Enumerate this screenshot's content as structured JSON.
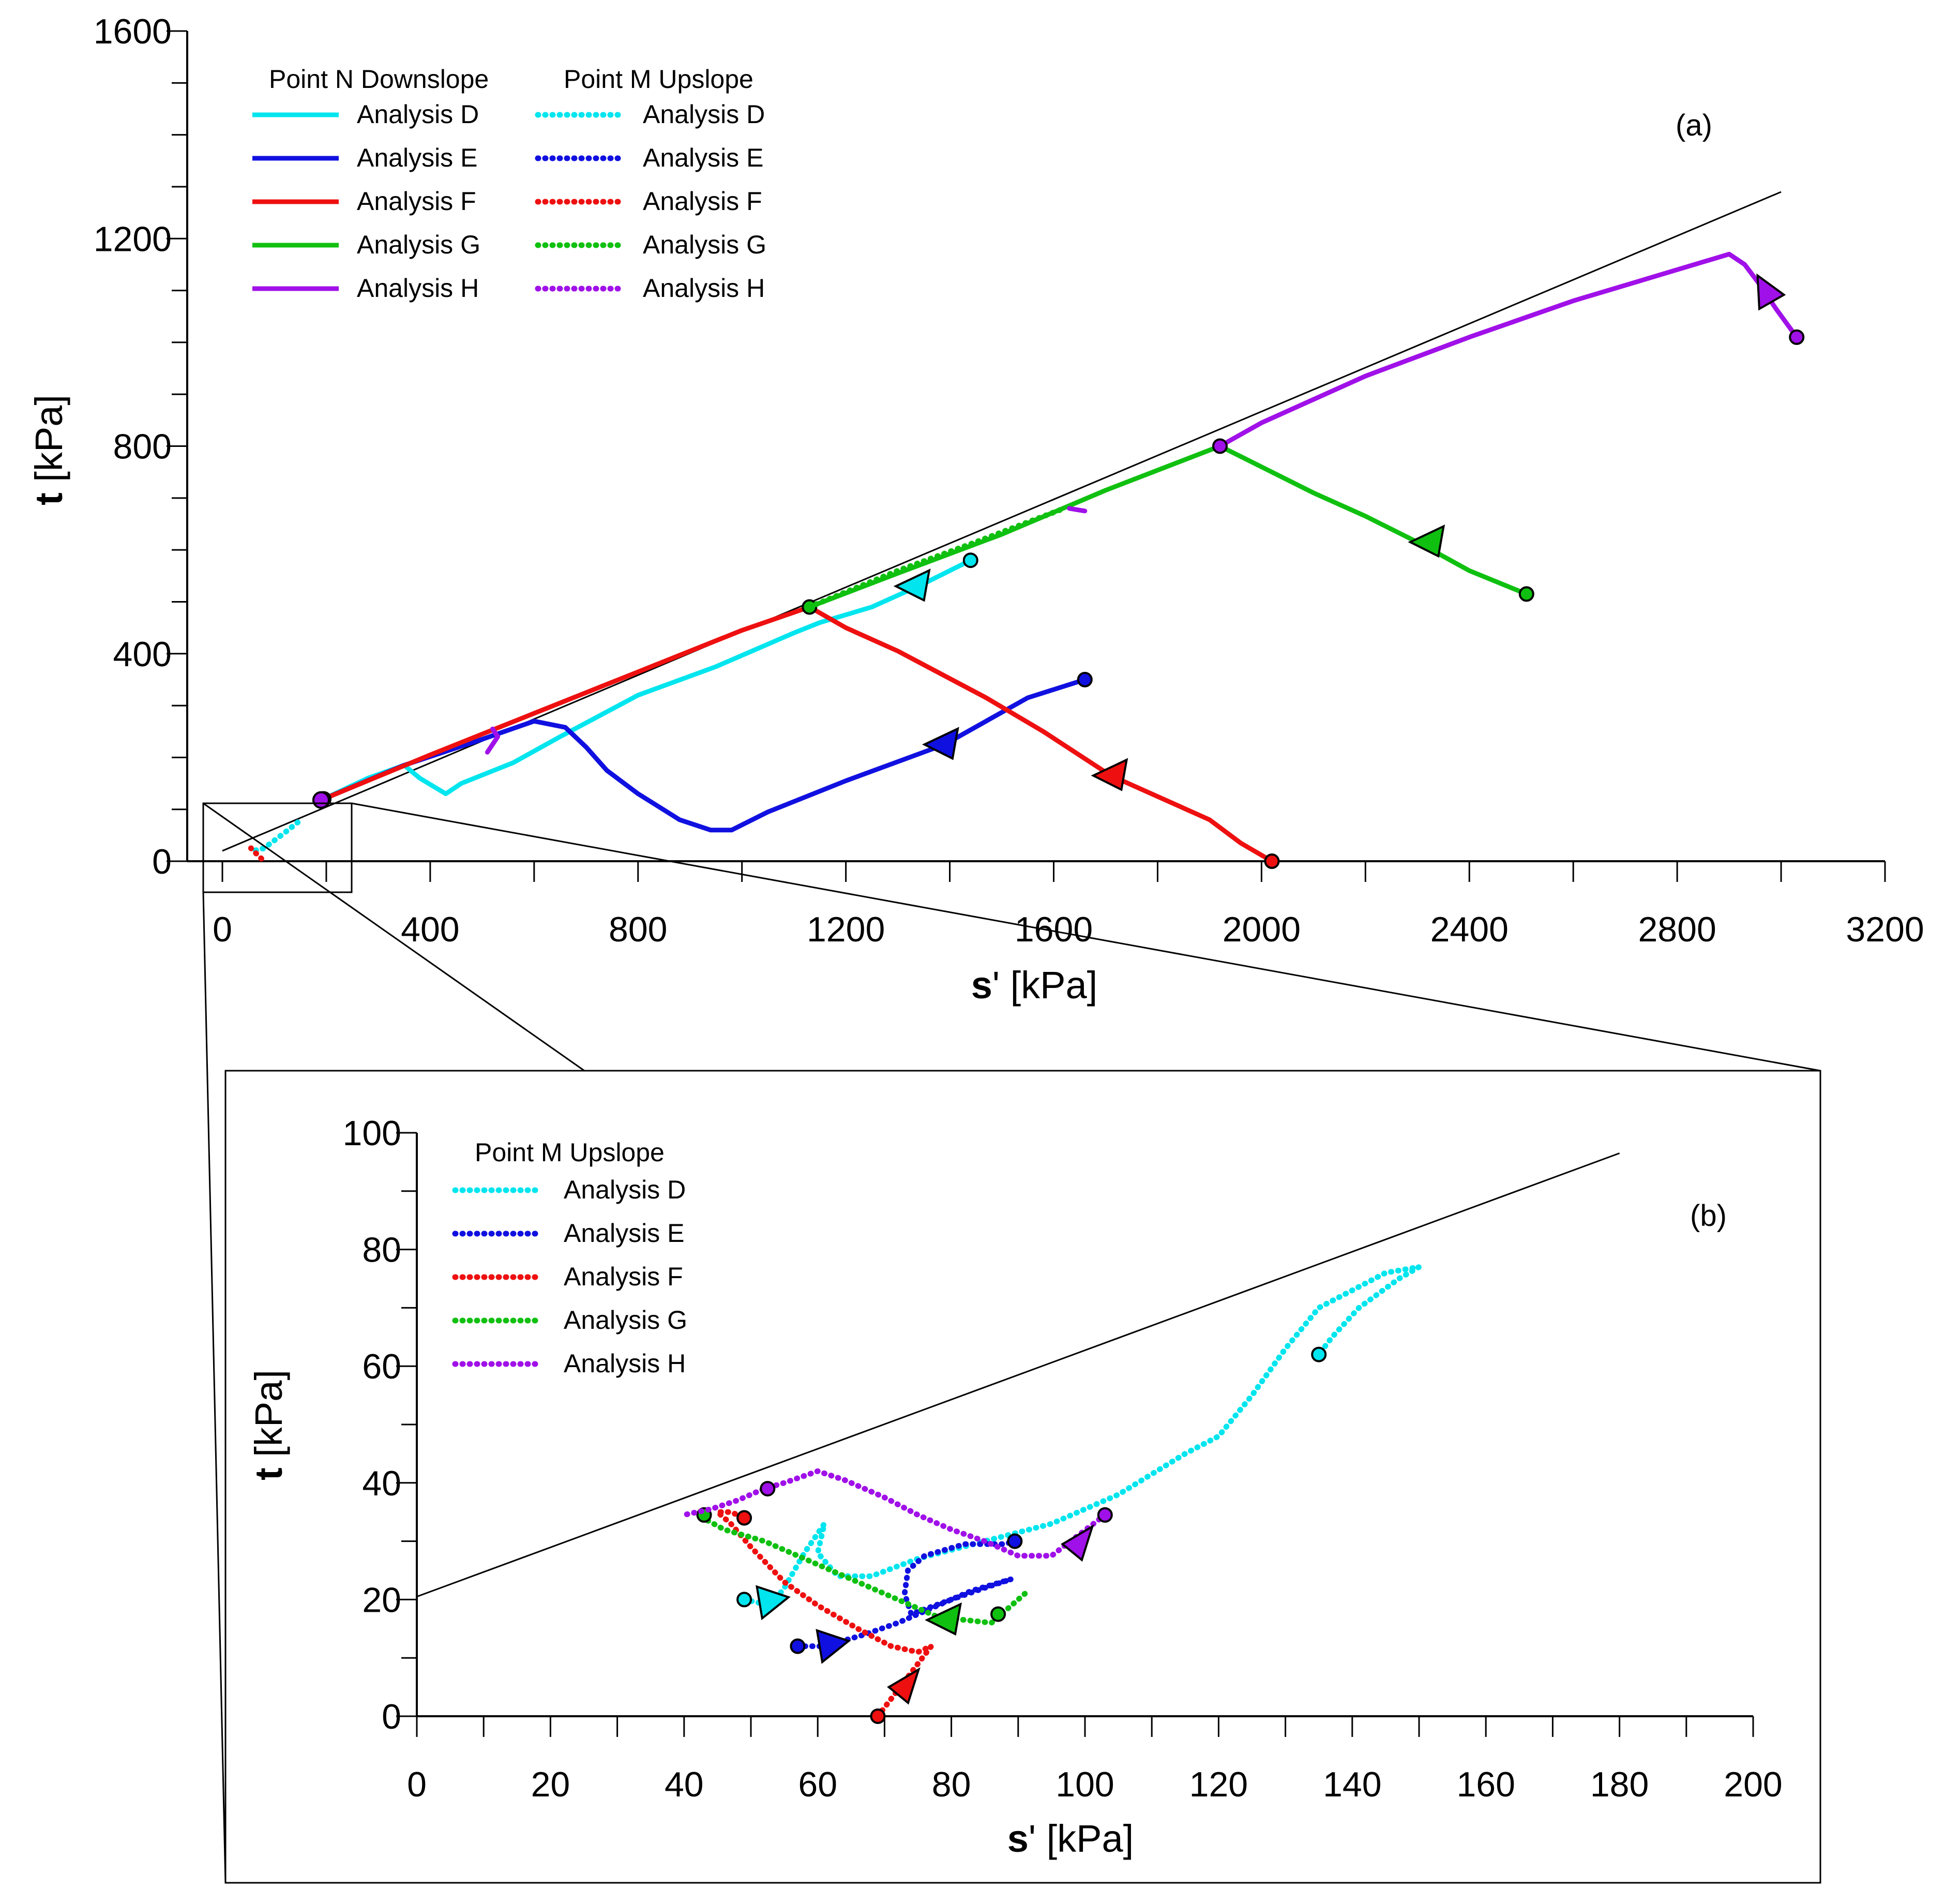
{
  "colors": {
    "D": "#00e5ee",
    "E": "#1010e0",
    "F": "#ee1010",
    "G": "#10c010",
    "H": "#a010e8",
    "line": "#000000"
  },
  "chart_data": [
    {
      "id": "a",
      "type": "line",
      "panel_label": "(a)",
      "xlabel_bold": "s",
      "xlabel_rest": "' [kPa]",
      "ylabel_bold": "t",
      "ylabel_rest": " [kPa]",
      "xlim": [
        0,
        3200
      ],
      "ylim": [
        0,
        1600
      ],
      "xticks": [
        0,
        400,
        800,
        1200,
        1600,
        2000,
        2400,
        2800,
        3200
      ],
      "yticks": [
        0,
        400,
        800,
        1200,
        1600
      ],
      "xtick_labels": [
        "0",
        "400",
        "800",
        "1200",
        "1600",
        "2000",
        "2400",
        "2800",
        "3200"
      ],
      "ytick_labels": [
        "0",
        "400",
        "800",
        "1200",
        "1600"
      ],
      "legend": {
        "heading_solid": "Point N Downslope",
        "heading_dotted": "Point M Upslope",
        "entries": [
          {
            "key": "D",
            "label": "Analysis D"
          },
          {
            "key": "E",
            "label": "Analysis E"
          },
          {
            "key": "F",
            "label": "Analysis F"
          },
          {
            "key": "G",
            "label": "Analysis G"
          },
          {
            "key": "H",
            "label": "Analysis H"
          }
        ]
      },
      "failure_line": [
        [
          0,
          20
        ],
        [
          3000,
          1290
        ]
      ],
      "series": [
        {
          "name": "Point N Downslope - Analysis D",
          "key": "D",
          "style": "solid",
          "points": [
            [
              1440,
              580
            ],
            [
              1350,
              535
            ],
            [
              1250,
              490
            ],
            [
              1150,
              460
            ],
            [
              1100,
              440
            ],
            [
              950,
              375
            ],
            [
              800,
              320
            ],
            [
              650,
              240
            ],
            [
              560,
              190
            ],
            [
              460,
              150
            ],
            [
              430,
              130
            ],
            [
              380,
              160
            ],
            [
              350,
              185
            ],
            [
              280,
              160
            ],
            [
              195,
              120
            ]
          ],
          "start": [
            1440,
            580
          ],
          "end": [
            195,
            120
          ],
          "arrow": {
            "at": [
              1330,
              530
            ],
            "dir": "left"
          }
        },
        {
          "name": "Point N Downslope - Analysis E",
          "key": "E",
          "style": "solid",
          "points": [
            [
              1660,
              350
            ],
            [
              1550,
              315
            ],
            [
              1390,
              225
            ],
            [
              1200,
              155
            ],
            [
              1050,
              95
            ],
            [
              980,
              60
            ],
            [
              940,
              60
            ],
            [
              880,
              80
            ],
            [
              800,
              130
            ],
            [
              740,
              175
            ],
            [
              700,
              220
            ],
            [
              660,
              258
            ],
            [
              600,
              270
            ],
            [
              500,
              235
            ],
            [
              350,
              185
            ],
            [
              195,
              120
            ]
          ],
          "start": [
            1660,
            350
          ],
          "end": [
            195,
            120
          ],
          "arrow": {
            "at": [
              1385,
              225
            ],
            "dir": "left"
          }
        },
        {
          "name": "Point N Downslope - Analysis F",
          "key": "F",
          "style": "solid",
          "points": [
            [
              2020,
              0
            ],
            [
              1960,
              35
            ],
            [
              1900,
              80
            ],
            [
              1710,
              165
            ],
            [
              1580,
              250
            ],
            [
              1470,
              315
            ],
            [
              1300,
              405
            ],
            [
              1200,
              450
            ],
            [
              1130,
              490
            ],
            [
              1000,
              445
            ],
            [
              800,
              365
            ],
            [
              600,
              285
            ],
            [
              400,
              205
            ],
            [
              195,
              120
            ]
          ],
          "start": [
            2020,
            0
          ],
          "end": [
            195,
            120
          ],
          "arrow": {
            "at": [
              1710,
              165
            ],
            "dir": "left"
          }
        },
        {
          "name": "Point N Downslope - Analysis G",
          "key": "G",
          "style": "solid",
          "points": [
            [
              2510,
              515
            ],
            [
              2400,
              560
            ],
            [
              2300,
              615
            ],
            [
              2200,
              665
            ],
            [
              2100,
              710
            ],
            [
              2000,
              760
            ],
            [
              1920,
              800
            ],
            [
              1700,
              715
            ],
            [
              1500,
              630
            ],
            [
              1300,
              555
            ],
            [
              1130,
              490
            ]
          ],
          "start": [
            2510,
            515
          ],
          "end": [
            1130,
            490
          ],
          "arrow": {
            "at": [
              2320,
              615
            ],
            "dir": "left"
          }
        },
        {
          "name": "Point N Downslope - Analysis H",
          "key": "H",
          "style": "solid",
          "points": [
            [
              3030,
              1010
            ],
            [
              2990,
              1065
            ],
            [
              2960,
              1110
            ],
            [
              2930,
              1150
            ],
            [
              2900,
              1170
            ],
            [
              2600,
              1080
            ],
            [
              2400,
              1010
            ],
            [
              2200,
              935
            ],
            [
              2000,
              845
            ],
            [
              1920,
              800
            ]
          ],
          "start": [
            3030,
            1010
          ],
          "end": [
            1920,
            800
          ],
          "arrow": {
            "at": [
              2975,
              1095
            ],
            "dir": "up"
          }
        },
        {
          "name": "Point N Downslope - Analysis H (segment)",
          "key": "H",
          "style": "solid",
          "points": [
            [
              1660,
              675
            ],
            [
              1630,
              680
            ]
          ],
          "start": null,
          "end": null,
          "arrow": null
        },
        {
          "name": "Point N Downslope - Analysis H (segment 2)",
          "key": "H",
          "style": "solid",
          "points": [
            [
              510,
              210
            ],
            [
              530,
              240
            ],
            [
              520,
              255
            ]
          ],
          "start": null,
          "end": null,
          "arrow": null
        },
        {
          "name": "Point M Upslope - Analysis D (panel a)",
          "key": "D",
          "style": "dotted",
          "points": [
            [
              145,
              75
            ],
            [
              120,
              55
            ],
            [
              100,
              40
            ],
            [
              80,
              25
            ],
            [
              60,
              20
            ]
          ],
          "start": null,
          "end": null,
          "arrow": null
        },
        {
          "name": "Point M Upslope - Analysis G (panel a)",
          "key": "G",
          "style": "dotted",
          "points": [
            [
              1130,
              490
            ],
            [
              1300,
              560
            ],
            [
              1450,
              615
            ],
            [
              1620,
              680
            ]
          ],
          "start": null,
          "end": null,
          "arrow": null
        },
        {
          "name": "Point M Upslope - Analysis F (panel a)",
          "key": "F",
          "style": "dotted",
          "points": [
            [
              75,
              5
            ],
            [
              65,
              15
            ],
            [
              55,
              25
            ]
          ],
          "start": null,
          "end": null,
          "arrow": null
        }
      ],
      "start_marker_n": {
        "at": [
          190,
          118
        ]
      }
    },
    {
      "id": "b",
      "type": "line",
      "panel_label": "(b)",
      "xlabel_bold": "s",
      "xlabel_rest": "' [kPa]",
      "ylabel_bold": "t",
      "ylabel_rest": " [kPa]",
      "xlim": [
        0,
        200
      ],
      "ylim": [
        0,
        100
      ],
      "xticks": [
        0,
        20,
        40,
        60,
        80,
        100,
        120,
        140,
        160,
        180,
        200
      ],
      "yticks": [
        0,
        20,
        40,
        60,
        80,
        100
      ],
      "xtick_labels": [
        "0",
        "20",
        "40",
        "60",
        "80",
        "100",
        "120",
        "140",
        "160",
        "180",
        "200"
      ],
      "ytick_labels": [
        "0",
        "20",
        "40",
        "60",
        "80",
        "100"
      ],
      "legend": {
        "heading_dotted": "Point M Upslope",
        "entries": [
          {
            "key": "D",
            "label": "Analysis D"
          },
          {
            "key": "E",
            "label": "Analysis E"
          },
          {
            "key": "F",
            "label": "Analysis F"
          },
          {
            "key": "G",
            "label": "Analysis G"
          },
          {
            "key": "H",
            "label": "Analysis H"
          }
        ]
      },
      "failure_line": [
        [
          0,
          20.5
        ],
        [
          180,
          96.5
        ]
      ],
      "series": [
        {
          "name": "Point M Upslope - Analysis D",
          "key": "D",
          "style": "dotted",
          "points": [
            [
              49,
              20
            ],
            [
              53,
              19
            ],
            [
              55,
              22
            ],
            [
              58,
              28
            ],
            [
              61,
              33
            ],
            [
              60,
              28
            ],
            [
              63,
              24
            ],
            [
              68,
              24
            ],
            [
              75,
              27
            ],
            [
              85,
              30
            ],
            [
              95,
              33
            ],
            [
              105,
              38
            ],
            [
              115,
              45
            ],
            [
              120,
              48
            ],
            [
              125,
              55
            ],
            [
              130,
              63
            ],
            [
              135,
              70
            ],
            [
              140,
              73
            ],
            [
              145,
              76
            ],
            [
              150,
              77
            ],
            [
              147,
              75
            ],
            [
              141,
              70
            ],
            [
              137,
              65
            ],
            [
              135,
              62
            ]
          ],
          "start": [
            49,
            20
          ],
          "end": [
            135,
            62
          ],
          "arrow": {
            "at": [
              53,
              19.5
            ],
            "dir": "right"
          }
        },
        {
          "name": "Point M Upslope - Analysis E",
          "key": "E",
          "style": "dotted",
          "points": [
            [
              57,
              12
            ],
            [
              61,
              12
            ],
            [
              67,
              14
            ],
            [
              72,
              16
            ],
            [
              78,
              19
            ],
            [
              83,
              21.5
            ],
            [
              89,
              23.5
            ],
            [
              85,
              22
            ],
            [
              80,
              20
            ],
            [
              74,
              17.5
            ],
            [
              73,
              21
            ],
            [
              73.5,
              25
            ],
            [
              76,
              27.5
            ],
            [
              82,
              29.5
            ],
            [
              88,
              29.5
            ],
            [
              89.5,
              30
            ]
          ],
          "start": [
            57,
            12
          ],
          "end": [
            89.5,
            30
          ],
          "arrow": {
            "at": [
              62,
              12
            ],
            "dir": "right"
          }
        },
        {
          "name": "Point M Upslope - Analysis F",
          "key": "F",
          "style": "dotted",
          "points": [
            [
              69,
              0
            ],
            [
              71,
              3
            ],
            [
              73,
              6
            ],
            [
              75,
              9
            ],
            [
              77,
              12
            ],
            [
              75,
              11
            ],
            [
              71,
              12
            ],
            [
              66,
              15
            ],
            [
              60,
              19
            ],
            [
              55,
              23
            ],
            [
              50,
              29
            ],
            [
              47,
              33
            ],
            [
              45,
              35
            ],
            [
              47,
              35
            ],
            [
              49,
              34
            ]
          ],
          "start": [
            69,
            0
          ],
          "end": [
            49,
            34
          ],
          "arrow": {
            "at": [
              73,
              5
            ],
            "dir": "up-right"
          }
        },
        {
          "name": "Point M Upslope - Analysis G",
          "key": "G",
          "style": "dotted",
          "points": [
            [
              91,
              21
            ],
            [
              88,
              18
            ],
            [
              86,
              16
            ],
            [
              82,
              16.5
            ],
            [
              78,
              17
            ],
            [
              72,
              20
            ],
            [
              65,
              23.5
            ],
            [
              58,
              27
            ],
            [
              52,
              30
            ],
            [
              46,
              32
            ],
            [
              42,
              34.5
            ],
            [
              44,
              35
            ],
            [
              43,
              34.5
            ]
          ],
          "start": [
            87,
            17.5
          ],
          "end": [
            43,
            34.5
          ],
          "arrow": {
            "at": [
              79,
              16.5
            ],
            "dir": "left"
          }
        },
        {
          "name": "Point M Upslope - Analysis H",
          "key": "H",
          "style": "dotted",
          "points": [
            [
              103,
              34.5
            ],
            [
              99,
              31
            ],
            [
              95,
              27.5
            ],
            [
              90,
              27.5
            ],
            [
              85,
              30
            ],
            [
              80,
              32
            ],
            [
              75,
              34.5
            ],
            [
              70,
              37.5
            ],
            [
              64,
              40.5
            ],
            [
              60,
              42
            ],
            [
              55,
              40
            ],
            [
              52,
              39
            ],
            [
              48,
              37
            ],
            [
              44,
              35.5
            ],
            [
              40,
              34.5
            ]
          ],
          "start": [
            103,
            34.5
          ],
          "end": [
            52.5,
            39
          ],
          "arrow": {
            "at": [
              99,
              29.5
            ],
            "dir": "up-right"
          }
        }
      ]
    }
  ]
}
